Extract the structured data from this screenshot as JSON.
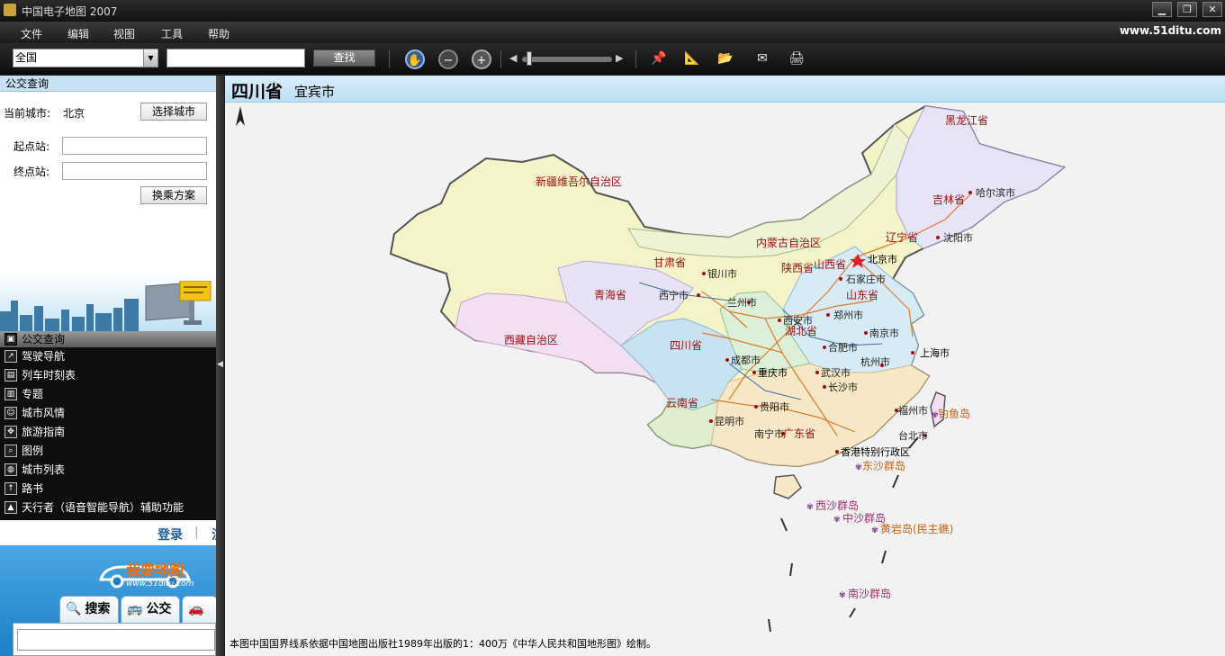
{
  "window": {
    "title": "中国电子地图 2007",
    "controls": {
      "minimize": "▁",
      "restore": "❐",
      "close": "✕"
    }
  },
  "menu": {
    "items": [
      "文件",
      "编辑",
      "视图",
      "工具",
      "帮助"
    ],
    "site": "www.51ditu.com"
  },
  "toolbar": {
    "region_select": "全国",
    "search_placeholder": "",
    "find_button": "查找",
    "icons": [
      "pan-hand-icon",
      "zoom-out-icon",
      "zoom-in-icon",
      "pin-icon",
      "ruler-icon",
      "folder-icon",
      "send-icon",
      "print-icon"
    ],
    "zoom_level": 0.05
  },
  "bus_panel": {
    "header": "公交查询",
    "current_city_label": "当前城市:",
    "current_city": "北京",
    "choose_city_button": "选择城市",
    "start_label": "起点站:",
    "end_label": "终点站:",
    "transfer_button": "换乘方案"
  },
  "nav": {
    "header": "公交查询",
    "items": [
      {
        "label": "驾驶导航",
        "icon": "arrow-icon"
      },
      {
        "label": "列车时刻表",
        "icon": "book-icon"
      },
      {
        "label": "专题",
        "icon": "chart-icon"
      },
      {
        "label": "城市风情",
        "icon": "person-icon"
      },
      {
        "label": "旅游指南",
        "icon": "compass-icon"
      },
      {
        "label": "图例",
        "icon": "magnifier-icon"
      },
      {
        "label": "城市列表",
        "icon": "globe-icon"
      },
      {
        "label": "路书",
        "icon": "route-icon"
      },
      {
        "label": "天行者（语音智能导航）辅助功能",
        "icon": "navigator-icon"
      }
    ]
  },
  "login": {
    "login_label": "登录",
    "register_label": "注"
  },
  "promo": {
    "brand": "我要地图",
    "url": "www.51ditu.com",
    "tabs": [
      "搜索",
      "公交",
      "驾"
    ]
  },
  "map": {
    "province": "四川省",
    "city": "宜宾市",
    "footnote": "本图中国国界线系依据中国地图出版社1989年出版的1：400万《中华人民共和国地形图》绘制。",
    "provinces": [
      {
        "name": "新疆维吾尔自治区"
      },
      {
        "name": "西藏自治区"
      },
      {
        "name": "青海省"
      },
      {
        "name": "甘肃省"
      },
      {
        "name": "内蒙古自治区"
      },
      {
        "name": "黑龙江省"
      },
      {
        "name": "吉林省"
      },
      {
        "name": "辽宁省"
      },
      {
        "name": "山西省"
      },
      {
        "name": "陕西省"
      },
      {
        "name": "四川省"
      },
      {
        "name": "云南省"
      },
      {
        "name": "山东省"
      },
      {
        "name": "湖北省"
      },
      {
        "name": "广东省"
      }
    ],
    "cities": [
      {
        "name": "哈尔滨市"
      },
      {
        "name": "沈阳市"
      },
      {
        "name": "北京市"
      },
      {
        "name": "石家庄市"
      },
      {
        "name": "银川市"
      },
      {
        "name": "西宁市"
      },
      {
        "name": "兰州市"
      },
      {
        "name": "西安市"
      },
      {
        "name": "郑州市"
      },
      {
        "name": "南京市"
      },
      {
        "name": "合肥市"
      },
      {
        "name": "上海市"
      },
      {
        "name": "成都市"
      },
      {
        "name": "重庆市"
      },
      {
        "name": "武汉市"
      },
      {
        "name": "杭州市"
      },
      {
        "name": "长沙市"
      },
      {
        "name": "贵阳市"
      },
      {
        "name": "昆明市"
      },
      {
        "name": "福州市"
      },
      {
        "name": "台北市"
      },
      {
        "name": "南宁市"
      },
      {
        "name": "香港特别行政区"
      }
    ],
    "islands": [
      {
        "name": "钓鱼岛"
      },
      {
        "name": "东沙群岛"
      },
      {
        "name": "西沙群岛"
      },
      {
        "name": "中沙群岛"
      },
      {
        "name": "黄岩岛(民主礁)"
      },
      {
        "name": "南沙群岛"
      }
    ],
    "colors": {
      "land_outline": "#555555",
      "province_label": "#a01010",
      "island_label": "#c8641e",
      "road": "#e07a2a",
      "background": "#f2f2f2"
    }
  }
}
